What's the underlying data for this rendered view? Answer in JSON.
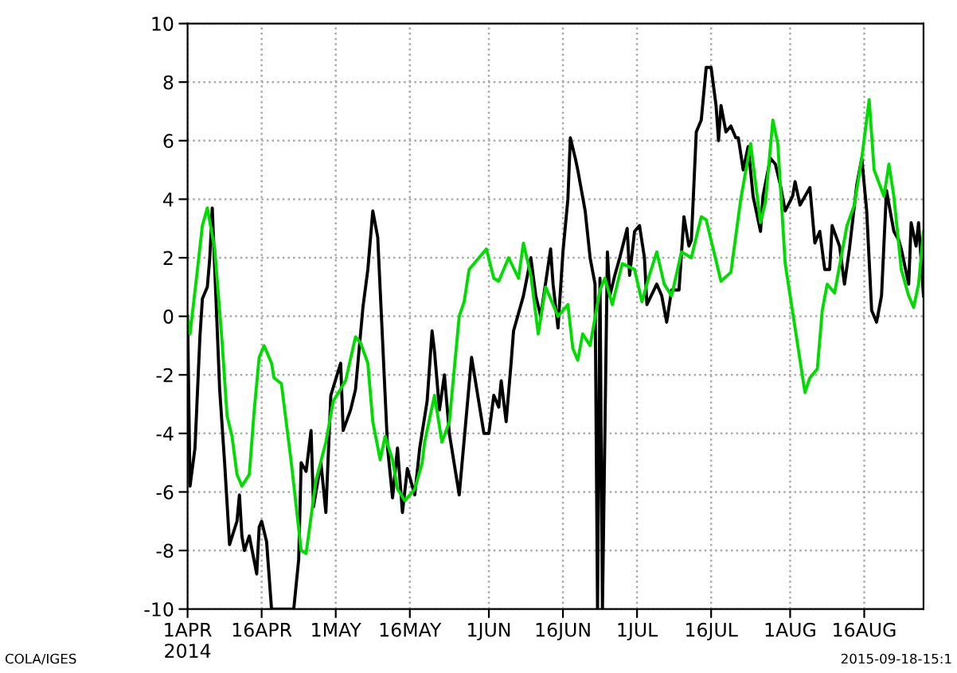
{
  "chart_data": {
    "type": "line",
    "xlim": [
      "2014-04-01",
      "2014-08-28"
    ],
    "xticks": [
      {
        "value": "2014-04-01",
        "label": "1APR\n2014"
      },
      {
        "value": "2014-04-16",
        "label": "16APR"
      },
      {
        "value": "2014-05-01",
        "label": "1MAY"
      },
      {
        "value": "2014-05-16",
        "label": "16MAY"
      },
      {
        "value": "2014-06-01",
        "label": "1JUN"
      },
      {
        "value": "2014-06-16",
        "label": "16JUN"
      },
      {
        "value": "2014-07-01",
        "label": "1JUL"
      },
      {
        "value": "2014-07-16",
        "label": "16JUL"
      },
      {
        "value": "2014-08-01",
        "label": "1AUG"
      },
      {
        "value": "2014-08-16",
        "label": "16AUG"
      }
    ],
    "ylim": [
      -10,
      10
    ],
    "yticks": [
      -10,
      -8,
      -6,
      -4,
      -2,
      0,
      2,
      4,
      6,
      8,
      10
    ],
    "grid": true,
    "marker": "none",
    "line_style": "solid",
    "annotations": [
      "COLA/IGES",
      "2015-09-18-15:1"
    ],
    "series": [
      {
        "color": "#000000",
        "x": [
          "2014-04-01",
          "2014-04-01T12:00",
          "2014-04-02T12:00",
          "2014-04-03T12:00",
          "2014-04-04",
          "2014-04-05",
          "2014-04-05T12:00",
          "2014-04-06",
          "2014-04-07T12:00",
          "2014-04-08T12:00",
          "2014-04-09T12:00",
          "2014-04-11",
          "2014-04-11T12:00",
          "2014-04-12",
          "2014-04-12T12:00",
          "2014-04-13T12:00",
          "2014-04-15",
          "2014-04-15T12:00",
          "2014-04-16",
          "2014-04-17",
          "2014-04-18",
          "2014-04-22T12:00",
          "2014-04-23T12:00",
          "2014-04-24",
          "2014-04-25",
          "2014-04-26",
          "2014-04-26T12:00",
          "2014-04-28",
          "2014-04-29",
          "2014-04-30",
          "2014-05-02",
          "2014-05-02T12:00",
          "2014-05-04",
          "2014-05-05",
          "2014-05-06T12:00",
          "2014-05-07T12:00",
          "2014-05-08T12:00",
          "2014-05-09T12:00",
          "2014-05-10T12:00",
          "2014-05-11T12:00",
          "2014-05-12T12:00",
          "2014-05-13T12:00",
          "2014-05-14T12:00",
          "2014-05-15T12:00",
          "2014-05-17",
          "2014-05-18",
          "2014-05-19T12:00",
          "2014-05-20T12:00",
          "2014-05-21",
          "2014-05-22",
          "2014-05-23",
          "2014-05-24",
          "2014-05-26",
          "2014-05-28T12:00",
          "2014-05-31",
          "2014-06-01",
          "2014-06-02",
          "2014-06-03",
          "2014-06-03T12:00",
          "2014-06-04T12:00",
          "2014-06-05T12:00",
          "2014-06-06",
          "2014-06-08",
          "2014-06-09T12:00",
          "2014-06-10T12:00",
          "2014-06-11T12:00",
          "2014-06-13T12:00",
          "2014-06-14",
          "2014-06-15",
          "2014-06-16",
          "2014-06-17",
          "2014-06-17T12:00",
          "2014-06-18T12:00",
          "2014-06-19",
          "2014-06-20T12:00",
          "2014-06-21T12:00",
          "2014-06-22T12:00",
          "2014-06-23",
          "2014-06-23T12:00",
          "2014-06-24",
          "2014-06-25",
          "2014-06-25T12:00",
          "2014-06-26T12:00",
          "2014-06-27T12:00",
          "2014-06-29",
          "2014-06-29T12:00",
          "2014-06-30T12:00",
          "2014-07-01T12:00",
          "2014-07-02T12:00",
          "2014-07-03",
          "2014-07-05",
          "2014-07-06",
          "2014-07-07",
          "2014-07-08",
          "2014-07-09T12:00",
          "2014-07-10T12:00",
          "2014-07-11T12:00",
          "2014-07-12",
          "2014-07-13",
          "2014-07-14",
          "2014-07-15",
          "2014-07-16",
          "2014-07-17",
          "2014-07-17T12:00",
          "2014-07-18",
          "2014-07-19",
          "2014-07-20",
          "2014-07-21",
          "2014-07-21T12:00",
          "2014-07-22T12:00",
          "2014-07-23T12:00",
          "2014-07-24T12:00",
          "2014-07-26",
          "2014-07-26T12:00",
          "2014-07-28",
          "2014-07-29",
          "2014-07-30",
          "2014-07-31",
          "2014-08-01T12:00",
          "2014-08-02",
          "2014-08-03",
          "2014-08-05",
          "2014-08-06",
          "2014-08-07",
          "2014-08-08",
          "2014-08-09",
          "2014-08-09T12:00",
          "2014-08-11",
          "2014-08-12",
          "2014-08-13",
          "2014-08-14T12:00",
          "2014-08-15T12:00",
          "2014-08-16T12:00",
          "2014-08-17T12:00",
          "2014-08-18T12:00",
          "2014-08-19T12:00",
          "2014-08-20T12:00",
          "2014-08-22",
          "2014-08-23",
          "2014-08-23T12:00",
          "2014-08-25",
          "2014-08-25T12:00",
          "2014-08-26T12:00",
          "2014-08-27",
          "2014-08-28"
        ],
        "values": [
          0,
          -5.8,
          -4.5,
          -0.7,
          0.6,
          1,
          2,
          3.7,
          -2.5,
          -5,
          -7.8,
          -7,
          -6.1,
          -7.5,
          -8,
          -7.5,
          -8.8,
          -7.2,
          -7,
          -7.7,
          -10,
          -10,
          -8.3,
          -5,
          -5.3,
          -3.9,
          -6.5,
          -5,
          -6.7,
          -2.7,
          -1.6,
          -3.9,
          -3.2,
          -2.5,
          0.3,
          1.6,
          3.6,
          2.7,
          -0.9,
          -4.5,
          -6.2,
          -4.5,
          -6.7,
          -5.2,
          -6.1,
          -4.5,
          -2.9,
          -0.5,
          -1.2,
          -3.2,
          -2,
          -4,
          -6.1,
          -1.4,
          -4,
          -4,
          -2.7,
          -3.1,
          -2.2,
          -3.6,
          -1.6,
          -0.5,
          0.7,
          2,
          0.7,
          0,
          2.3,
          1.1,
          -0.4,
          2.2,
          4,
          6.1,
          5.4,
          5,
          3.6,
          2,
          1.1,
          -10,
          1.3,
          -10,
          2.2,
          0.7,
          1.4,
          2,
          3,
          1.4,
          2.9,
          3.1,
          2,
          0.4,
          1.1,
          0.7,
          -0.2,
          0.9,
          0.9,
          3.4,
          2.4,
          2.6,
          6.3,
          6.7,
          8.5,
          8.5,
          7.2,
          6,
          7.2,
          6.3,
          6.5,
          6.1,
          6.1,
          5,
          5.8,
          4.1,
          2.9,
          4.1,
          5.4,
          5.2,
          4.5,
          3.6,
          4.1,
          4.6,
          3.8,
          4.4,
          2.5,
          2.9,
          1.6,
          1.6,
          3.1,
          2.4,
          1.1,
          2.3,
          4.5,
          5.4,
          3.6,
          0.2,
          -0.2,
          0.7,
          4.3,
          2.9,
          2.6,
          2.3,
          1.1,
          3.2,
          2.4,
          3.2,
          0.7
        ]
      },
      {
        "color": "#00dc00",
        "x": [
          "2014-04-01",
          "2014-04-01T12:00",
          "2014-04-03",
          "2014-04-04",
          "2014-04-05",
          "2014-04-06T12:00",
          "2014-04-08",
          "2014-04-09",
          "2014-04-10",
          "2014-04-11",
          "2014-04-12",
          "2014-04-13T12:00",
          "2014-04-14T12:00",
          "2014-04-15T12:00",
          "2014-04-16T12:00",
          "2014-04-18",
          "2014-04-18T12:00",
          "2014-04-20",
          "2014-04-22",
          "2014-04-24",
          "2014-04-25",
          "2014-04-27",
          "2014-04-29",
          "2014-04-30T12:00",
          "2014-05-03",
          "2014-05-05",
          "2014-05-06",
          "2014-05-07T12:00",
          "2014-05-08T12:00",
          "2014-05-10",
          "2014-05-11",
          "2014-05-12T12:00",
          "2014-05-13T12:00",
          "2014-05-15",
          "2014-05-17",
          "2014-05-18T12:00",
          "2014-05-19",
          "2014-05-21",
          "2014-05-22T12:00",
          "2014-05-24",
          "2014-05-26",
          "2014-05-27",
          "2014-05-28",
          "2014-05-29T12:00",
          "2014-05-31T12:00",
          "2014-06-02",
          "2014-06-03",
          "2014-06-05",
          "2014-06-07",
          "2014-06-08",
          "2014-06-09T12:00",
          "2014-06-11",
          "2014-06-12T12:00",
          "2014-06-15",
          "2014-06-17",
          "2014-06-18",
          "2014-06-19",
          "2014-06-20",
          "2014-06-21T12:00",
          "2014-06-23T12:00",
          "2014-06-24T12:00",
          "2014-06-26",
          "2014-06-27",
          "2014-06-28",
          "2014-06-30T12:00",
          "2014-07-02",
          "2014-07-03T12:00",
          "2014-07-05",
          "2014-07-06T12:00",
          "2014-07-08",
          "2014-07-10",
          "2014-07-12",
          "2014-07-14",
          "2014-07-15",
          "2014-07-18",
          "2014-07-20",
          "2014-07-22",
          "2014-07-24",
          "2014-07-26",
          "2014-07-27",
          "2014-07-28T12:00",
          "2014-07-29T12:00",
          "2014-07-31",
          "2014-08-02",
          "2014-08-04",
          "2014-08-05",
          "2014-08-06T12:00",
          "2014-08-07T12:00",
          "2014-08-08T12:00",
          "2014-08-10",
          "2014-08-12T12:00",
          "2014-08-14",
          "2014-08-15T12:00",
          "2014-08-17",
          "2014-08-18",
          "2014-08-20",
          "2014-08-21",
          "2014-08-22",
          "2014-08-23T12:00",
          "2014-08-25",
          "2014-08-26",
          "2014-08-27",
          "2014-08-28"
        ],
        "values": [
          0,
          -0.6,
          1.6,
          3.1,
          3.7,
          2.3,
          -0.9,
          -3.4,
          -4.1,
          -5.4,
          -5.8,
          -5.4,
          -3.2,
          -1.4,
          -1,
          -1.6,
          -2.1,
          -2.3,
          -5,
          -8,
          -8.1,
          -5.6,
          -4.3,
          -2.9,
          -2.2,
          -0.7,
          -0.9,
          -1.6,
          -3.6,
          -4.9,
          -4.1,
          -4.9,
          -5.9,
          -6.3,
          -5.9,
          -5,
          -4.3,
          -2.7,
          -4.3,
          -3.6,
          0,
          0.5,
          1.6,
          1.9,
          2.3,
          1.3,
          1.2,
          2,
          1.3,
          2.5,
          1.4,
          -0.6,
          1,
          0,
          0.4,
          -1.1,
          -1.5,
          -0.6,
          -1,
          0.9,
          1.3,
          0.4,
          1.1,
          1.8,
          1.6,
          0.5,
          1.4,
          2.2,
          1.1,
          0.7,
          2.2,
          2,
          3.4,
          3.3,
          1.2,
          1.5,
          4,
          5.9,
          3.2,
          3.9,
          6.7,
          5.9,
          1.8,
          -0.4,
          -2.6,
          -2.1,
          -1.8,
          0.2,
          1.1,
          0.8,
          3.1,
          3.8,
          5.4,
          7.4,
          5,
          4.1,
          5.2,
          4.1,
          1.6,
          0.7,
          0.3,
          1.1,
          2.9
        ]
      }
    ]
  }
}
